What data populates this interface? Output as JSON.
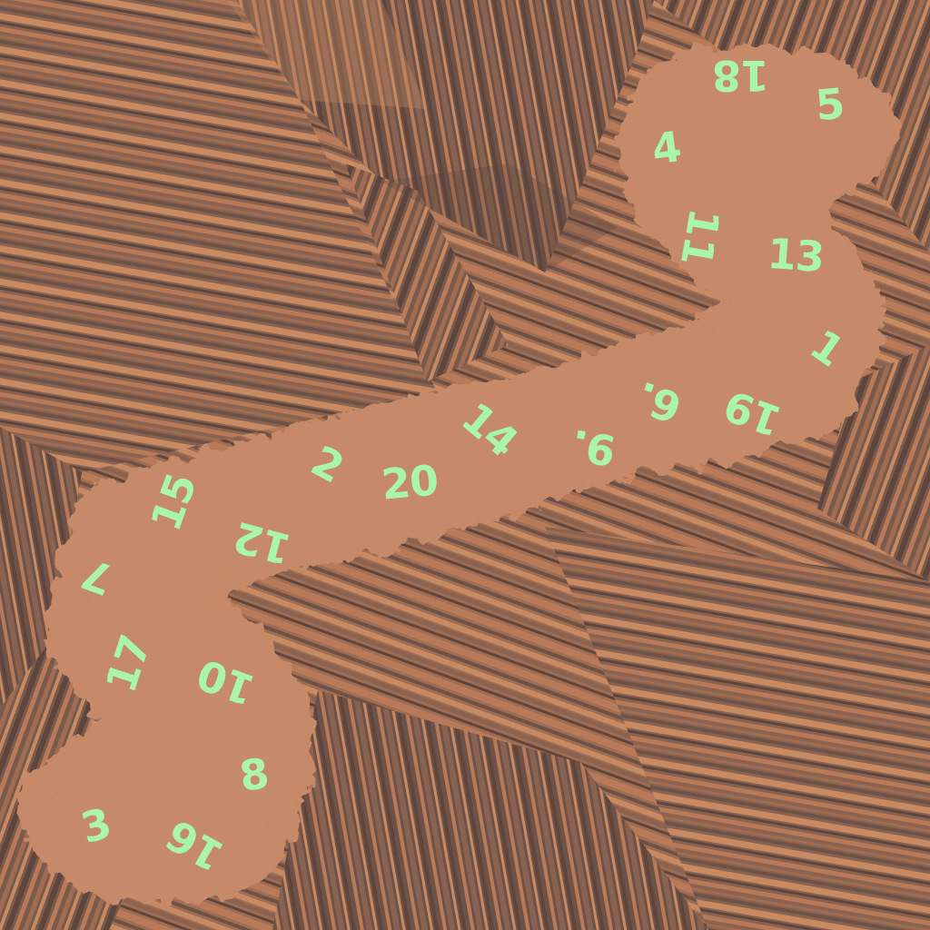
{
  "puzzle": {
    "numbers": [
      "18",
      "5",
      "4",
      "11",
      "13",
      "1",
      "6.",
      "19",
      "9.",
      "14",
      "2",
      "20",
      "15",
      "12",
      "7",
      "17",
      "10",
      "8",
      "3",
      "16"
    ],
    "number_color": "#a9f5a9",
    "path_color": "#c98a68",
    "background_colors": [
      "#b87a58",
      "#8a6350",
      "#6e5248",
      "#a06c52",
      "#c78a63",
      "#5e463f"
    ]
  }
}
